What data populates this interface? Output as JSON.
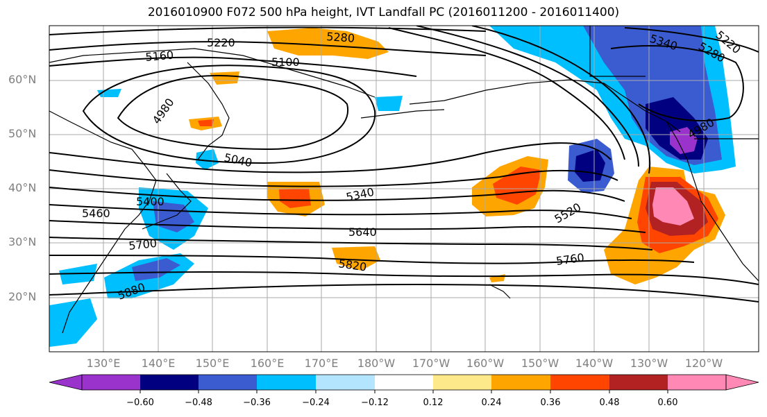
{
  "title": "2016010900 F072 500 hPa height, IVT Landfall PC (2016011200 - 2016011400)",
  "lat_labels": [
    "60°N",
    "50°N",
    "40°N",
    "30°N",
    "20°N"
  ],
  "lon_labels": [
    "130°E",
    "140°E",
    "150°E",
    "160°E",
    "170°E",
    "180°W",
    "170°W",
    "160°W",
    "150°W",
    "140°W",
    "130°W",
    "120°W"
  ],
  "contour_labels": [
    "5160",
    "5220",
    "5280",
    "5100",
    "4980",
    "5040",
    "5340",
    "5400",
    "5460",
    "5640",
    "5700",
    "5820",
    "5880",
    "5520",
    "5760",
    "5340",
    "5280",
    "5220",
    "4980"
  ],
  "colorbar": {
    "ticks": [
      "−0.60",
      "−0.48",
      "−0.36",
      "−0.24",
      "−0.12",
      "0.12",
      "0.24",
      "0.36",
      "0.48",
      "0.60"
    ],
    "colors": [
      "#9933cc",
      "#000080",
      "#3a5cd0",
      "#00bfff",
      "#b3e5ff",
      "#ffffff",
      "#fde98a",
      "#ffa500",
      "#ff4500",
      "#b22222",
      "#ff88b4",
      "#ff88b4"
    ]
  },
  "colors": {
    "positive_low": "#ffa500",
    "positive_mid": "#ff4500",
    "positive_high": "#b22222",
    "positive_max": "#ff88b4",
    "negative_low": "#00bfff",
    "negative_mid": "#3a5cd0",
    "negative_high": "#000080",
    "negative_max": "#9933cc",
    "grid": "#aaaaaa",
    "contour": "#000000"
  }
}
